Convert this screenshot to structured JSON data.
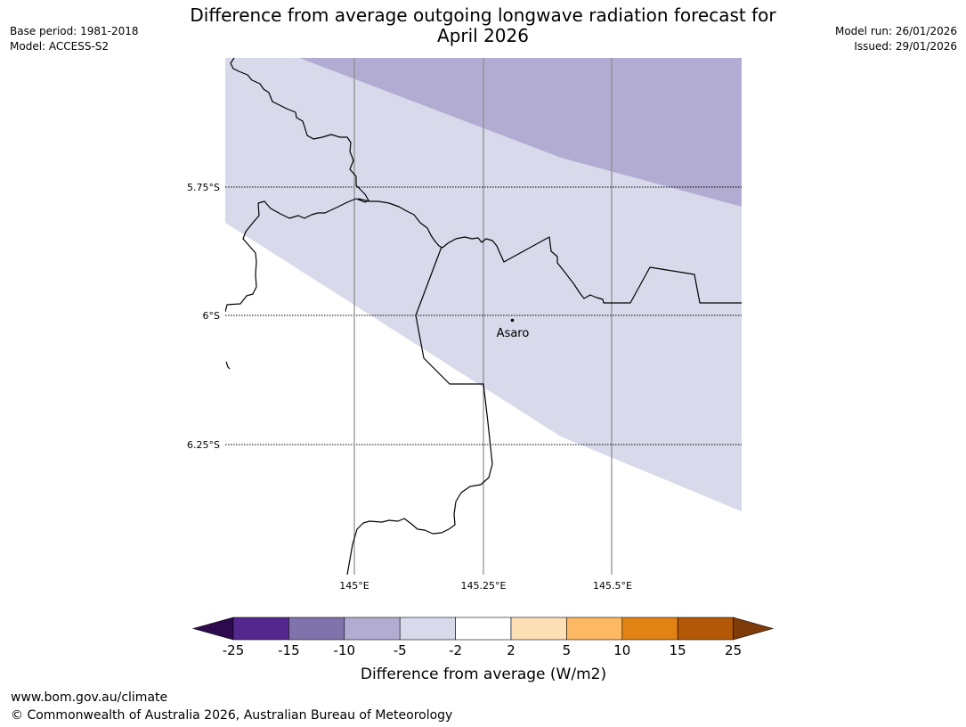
{
  "header": {
    "title_line1": "Difference from average outgoing longwave radiation forecast for",
    "title_line2": "April 2026",
    "base_period": "Base period: 1981-2018",
    "model": "Model: ACCESS-S2",
    "model_run": "Model run: 26/01/2026",
    "issued": "Issued: 29/01/2026"
  },
  "map": {
    "place_label": "Asaro",
    "lat_labels": [
      "5.75°S",
      "6°S",
      "6.25°S"
    ],
    "lon_labels": [
      "145°E",
      "145.25°E",
      "145.5°E"
    ],
    "fill_colors": {
      "band_minus10_minus5": "#b3acd2",
      "band_minus5_minus2": "#d8d9ea"
    }
  },
  "colorbar": {
    "title": "Difference from average (W/m2)",
    "tick_labels": [
      "-25",
      "-15",
      "-10",
      "-5",
      "-2",
      "2",
      "5",
      "10",
      "15",
      "25"
    ],
    "under_color": "#2d0a4e",
    "over_color": "#7f3b08",
    "segments": [
      {
        "from": -25,
        "to": -15,
        "color": "#54278f"
      },
      {
        "from": -15,
        "to": -10,
        "color": "#8073ac"
      },
      {
        "from": -10,
        "to": -5,
        "color": "#b2abd2"
      },
      {
        "from": -5,
        "to": -2,
        "color": "#d8daeb"
      },
      {
        "from": -2,
        "to": 2,
        "color": "#ffffff"
      },
      {
        "from": 2,
        "to": 5,
        "color": "#fee0b6"
      },
      {
        "from": 5,
        "to": 10,
        "color": "#fdb863"
      },
      {
        "from": 10,
        "to": 15,
        "color": "#e08214"
      },
      {
        "from": 15,
        "to": 25,
        "color": "#b35806"
      }
    ]
  },
  "footer": {
    "website": "www.bom.gov.au/climate",
    "copyright": "© Commonwealth of Australia 2026, Australian Bureau of Meteorology"
  }
}
